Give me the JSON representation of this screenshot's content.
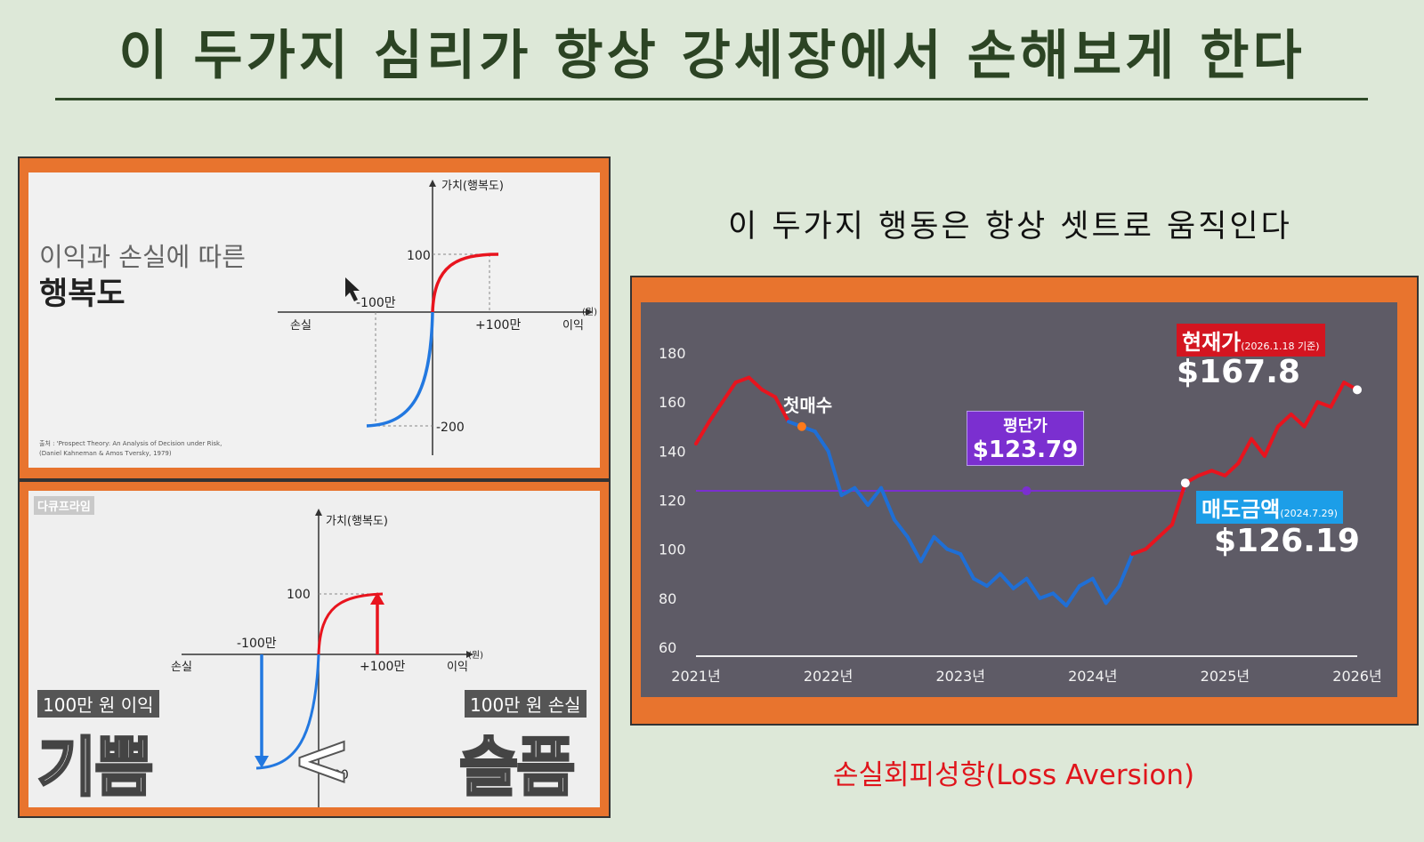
{
  "slide": {
    "title": "이 두가지 심리가 항상 강세장에서 손해보게 한다"
  },
  "captions": {
    "top_right": "이 두가지 행동은 항상 셋트로 움직인다",
    "bottom_right": "손실회피성향(Loss Aversion)"
  },
  "top_left_panel": {
    "heading_line1": "이익과 손실에 따른",
    "heading_line2": "행복도",
    "y_axis_label": "가치(행복도)",
    "x_left_label": "손실",
    "x_right_label": "이익",
    "x_unit": "(원)",
    "tick_y_top": "100",
    "tick_y_bottom": "-200",
    "tick_x_left": "-100만",
    "tick_x_right": "+100만",
    "source_line1": "출처 : 'Prospect Theory: An Analysis of Decision under Risk,",
    "source_line2": "(Daniel Kahneman & Amos Tversky, 1979)"
  },
  "bottom_left_panel": {
    "brand": "다큐프라임",
    "y_axis_label": "가치(행복도)",
    "x_left_label": "손실",
    "x_right_label": "이익",
    "x_unit": "(원)",
    "tick_y_top": "100",
    "tick_x_left": "-100만",
    "tick_x_right": "+100만",
    "tick_y_bottom_partial": "00",
    "gain_tag": "100만 원 이익",
    "gain_word": "기쁨",
    "loss_tag": "100만 원 손실",
    "loss_word": "슬픔",
    "compare_symbol": "<"
  },
  "stock_chart_panel": {
    "current_price_label": "현재가",
    "current_price_note": "(2026.1.18 기준)",
    "current_price_value": "$167.8",
    "avg_price_label": "평단가",
    "avg_price_value": "$123.79",
    "sell_label": "매도금액",
    "sell_note": "(2024.7.29)",
    "sell_value": "$126.19",
    "first_buy_label": "첫매수",
    "colors": {
      "up": "#e8141e",
      "down": "#1f6fd6",
      "avg_line": "#7b2fd0",
      "first_buy_dot": "#ff7a1a"
    }
  },
  "chart_data": {
    "type": "line",
    "title": "",
    "xlabel": "",
    "ylabel": "",
    "x_ticks": [
      "2021년",
      "2022년",
      "2023년",
      "2024년",
      "2025년",
      "2026년"
    ],
    "y_ticks": [
      60,
      80,
      100,
      120,
      140,
      160,
      180
    ],
    "xlim": [
      2021.0,
      2026.0
    ],
    "ylim": [
      60,
      180
    ],
    "grid": false,
    "reference_line": {
      "label": "평단가",
      "value": 123.79
    },
    "series": [
      {
        "x": [
          2021.0,
          2021.1,
          2021.2,
          2021.3,
          2021.4,
          2021.5,
          2021.6,
          2021.7,
          2021.8,
          2021.9,
          2022.0,
          2022.1,
          2022.2,
          2022.3,
          2022.4,
          2022.5,
          2022.6,
          2022.7,
          2022.8,
          2022.9,
          2023.0,
          2023.1,
          2023.2,
          2023.3,
          2023.4,
          2023.5,
          2023.6,
          2023.7,
          2023.8,
          2023.9,
          2024.0,
          2024.1,
          2024.2,
          2024.3,
          2024.4,
          2024.5,
          2024.6,
          2024.7,
          2024.8,
          2024.9,
          2025.0,
          2025.1,
          2025.2,
          2025.3,
          2025.4,
          2025.5,
          2025.6,
          2025.7,
          2025.8,
          2025.9,
          2026.0
        ],
        "values": [
          143,
          152,
          160,
          168,
          170,
          165,
          162,
          152,
          150,
          148,
          140,
          122,
          125,
          118,
          125,
          112,
          105,
          95,
          105,
          100,
          98,
          88,
          85,
          90,
          84,
          88,
          80,
          82,
          77,
          85,
          88,
          78,
          85,
          98,
          100,
          105,
          110,
          127,
          130,
          132,
          130,
          135,
          145,
          138,
          150,
          155,
          150,
          160,
          158,
          168,
          165
        ]
      }
    ]
  }
}
